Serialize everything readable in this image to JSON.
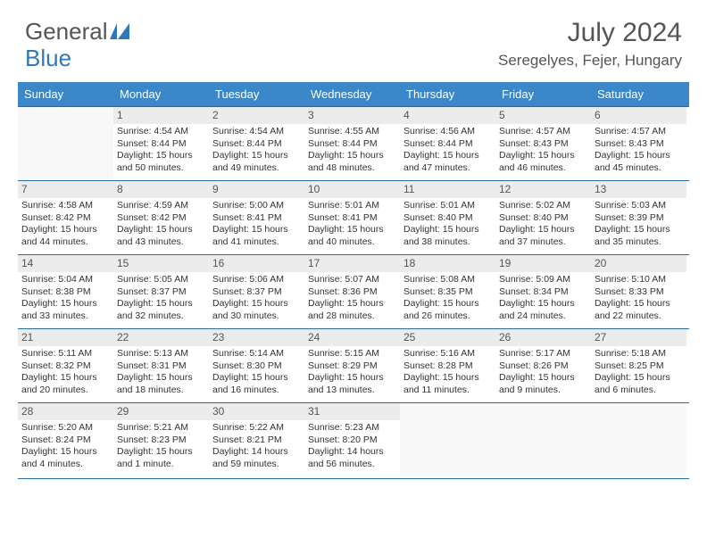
{
  "brand": {
    "word1": "General",
    "word2": "Blue"
  },
  "title": "July 2024",
  "location": "Seregelyes, Fejer, Hungary",
  "colors": {
    "header_bg": "#3b87c8",
    "header_text": "#ffffff",
    "week_border": "#2a6aa0",
    "daynum_bg": "#ececec",
    "body_text": "#333333",
    "title_text": "#555555",
    "brand_blue": "#2f78bc"
  },
  "day_names": [
    "Sunday",
    "Monday",
    "Tuesday",
    "Wednesday",
    "Thursday",
    "Friday",
    "Saturday"
  ],
  "weeks": [
    [
      null,
      {
        "n": "1",
        "sr": "4:54 AM",
        "ss": "8:44 PM",
        "dl": "15 hours and 50 minutes."
      },
      {
        "n": "2",
        "sr": "4:54 AM",
        "ss": "8:44 PM",
        "dl": "15 hours and 49 minutes."
      },
      {
        "n": "3",
        "sr": "4:55 AM",
        "ss": "8:44 PM",
        "dl": "15 hours and 48 minutes."
      },
      {
        "n": "4",
        "sr": "4:56 AM",
        "ss": "8:44 PM",
        "dl": "15 hours and 47 minutes."
      },
      {
        "n": "5",
        "sr": "4:57 AM",
        "ss": "8:43 PM",
        "dl": "15 hours and 46 minutes."
      },
      {
        "n": "6",
        "sr": "4:57 AM",
        "ss": "8:43 PM",
        "dl": "15 hours and 45 minutes."
      }
    ],
    [
      {
        "n": "7",
        "sr": "4:58 AM",
        "ss": "8:42 PM",
        "dl": "15 hours and 44 minutes."
      },
      {
        "n": "8",
        "sr": "4:59 AM",
        "ss": "8:42 PM",
        "dl": "15 hours and 43 minutes."
      },
      {
        "n": "9",
        "sr": "5:00 AM",
        "ss": "8:41 PM",
        "dl": "15 hours and 41 minutes."
      },
      {
        "n": "10",
        "sr": "5:01 AM",
        "ss": "8:41 PM",
        "dl": "15 hours and 40 minutes."
      },
      {
        "n": "11",
        "sr": "5:01 AM",
        "ss": "8:40 PM",
        "dl": "15 hours and 38 minutes."
      },
      {
        "n": "12",
        "sr": "5:02 AM",
        "ss": "8:40 PM",
        "dl": "15 hours and 37 minutes."
      },
      {
        "n": "13",
        "sr": "5:03 AM",
        "ss": "8:39 PM",
        "dl": "15 hours and 35 minutes."
      }
    ],
    [
      {
        "n": "14",
        "sr": "5:04 AM",
        "ss": "8:38 PM",
        "dl": "15 hours and 33 minutes."
      },
      {
        "n": "15",
        "sr": "5:05 AM",
        "ss": "8:37 PM",
        "dl": "15 hours and 32 minutes."
      },
      {
        "n": "16",
        "sr": "5:06 AM",
        "ss": "8:37 PM",
        "dl": "15 hours and 30 minutes."
      },
      {
        "n": "17",
        "sr": "5:07 AM",
        "ss": "8:36 PM",
        "dl": "15 hours and 28 minutes."
      },
      {
        "n": "18",
        "sr": "5:08 AM",
        "ss": "8:35 PM",
        "dl": "15 hours and 26 minutes."
      },
      {
        "n": "19",
        "sr": "5:09 AM",
        "ss": "8:34 PM",
        "dl": "15 hours and 24 minutes."
      },
      {
        "n": "20",
        "sr": "5:10 AM",
        "ss": "8:33 PM",
        "dl": "15 hours and 22 minutes."
      }
    ],
    [
      {
        "n": "21",
        "sr": "5:11 AM",
        "ss": "8:32 PM",
        "dl": "15 hours and 20 minutes."
      },
      {
        "n": "22",
        "sr": "5:13 AM",
        "ss": "8:31 PM",
        "dl": "15 hours and 18 minutes."
      },
      {
        "n": "23",
        "sr": "5:14 AM",
        "ss": "8:30 PM",
        "dl": "15 hours and 16 minutes."
      },
      {
        "n": "24",
        "sr": "5:15 AM",
        "ss": "8:29 PM",
        "dl": "15 hours and 13 minutes."
      },
      {
        "n": "25",
        "sr": "5:16 AM",
        "ss": "8:28 PM",
        "dl": "15 hours and 11 minutes."
      },
      {
        "n": "26",
        "sr": "5:17 AM",
        "ss": "8:26 PM",
        "dl": "15 hours and 9 minutes."
      },
      {
        "n": "27",
        "sr": "5:18 AM",
        "ss": "8:25 PM",
        "dl": "15 hours and 6 minutes."
      }
    ],
    [
      {
        "n": "28",
        "sr": "5:20 AM",
        "ss": "8:24 PM",
        "dl": "15 hours and 4 minutes."
      },
      {
        "n": "29",
        "sr": "5:21 AM",
        "ss": "8:23 PM",
        "dl": "15 hours and 1 minute."
      },
      {
        "n": "30",
        "sr": "5:22 AM",
        "ss": "8:21 PM",
        "dl": "14 hours and 59 minutes."
      },
      {
        "n": "31",
        "sr": "5:23 AM",
        "ss": "8:20 PM",
        "dl": "14 hours and 56 minutes."
      },
      null,
      null,
      null
    ]
  ],
  "labels": {
    "sunrise": "Sunrise:",
    "sunset": "Sunset:",
    "daylight": "Daylight:"
  }
}
